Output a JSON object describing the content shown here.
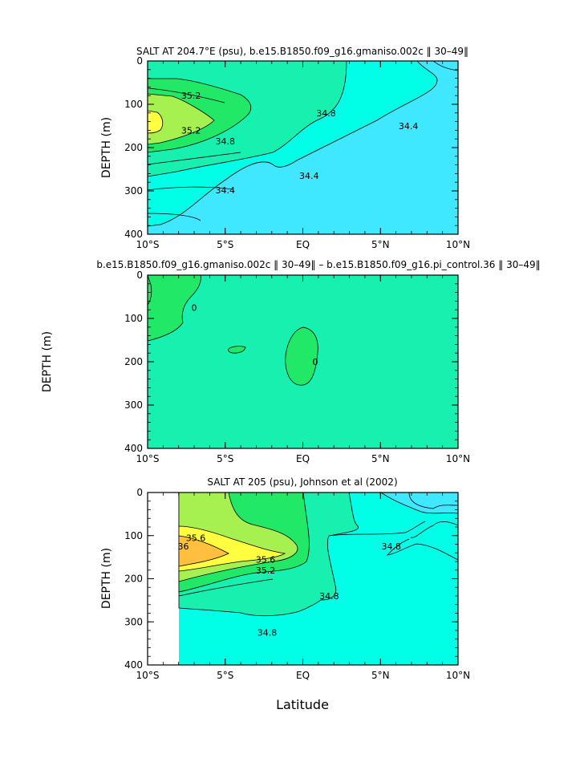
{
  "figure": {
    "xlabel": "Latitude",
    "colors": {
      "salt_lt_34_4": "#3fe8ff",
      "salt_34_4_34_8": "#00ffe6",
      "salt_34_8_35_2": "#18f0b0",
      "salt_35_2_35_6": "#22e868",
      "salt_35_6_36": "#a6f050",
      "salt_hi": "#ffff40",
      "salt_max": "#ffc040",
      "diff_zero": "#18f0b0",
      "diff_pos": "#22e868",
      "missing": "#ffffff"
    }
  },
  "chart_data": [
    {
      "type": "heatmap",
      "title": "SALT AT 204.7°E (psu), b.e15.B1850.f09_g16.gmaniso.002c ‖ 30–49‖",
      "xlabel": "",
      "ylabel": "DEPTH  (m)",
      "x_tick_labels": [
        "10°S",
        "5°S",
        "EQ",
        "5°N",
        "10°N"
      ],
      "x_tick_values": [
        -10,
        -5,
        0,
        5,
        10
      ],
      "y_tick_labels": [
        "0",
        "100",
        "200",
        "300",
        "400"
      ],
      "y_tick_values": [
        0,
        100,
        200,
        300,
        400
      ],
      "xlim": [
        -10,
        10
      ],
      "ylim": [
        400,
        0
      ],
      "contour_labels": [
        {
          "text": "35.2",
          "lat": -7.2,
          "depth": 80
        },
        {
          "text": "35.2",
          "lat": -7.2,
          "depth": 160
        },
        {
          "text": "34.8",
          "lat": -5.0,
          "depth": 185
        },
        {
          "text": "34.8",
          "lat": 1.5,
          "depth": 120
        },
        {
          "text": "34.4",
          "lat": -5.0,
          "depth": 298
        },
        {
          "text": "34.4",
          "lat": 0.4,
          "depth": 265
        },
        {
          "text": "34.4",
          "lat": 6.8,
          "depth": 150
        }
      ]
    },
    {
      "type": "heatmap",
      "title": "b.e15.B1850.f09_g16.gmaniso.002c ‖ 30–49‖ – b.e15.B1850.f09_g16.pi_control.36 ‖ 30–49‖",
      "xlabel": "",
      "ylabel": "DEPTH  (m)",
      "x_tick_labels": [
        "10°S",
        "5°S",
        "EQ",
        "5°N",
        "10°N"
      ],
      "x_tick_values": [
        -10,
        -5,
        0,
        5,
        10
      ],
      "y_tick_labels": [
        "0",
        "100",
        "200",
        "300",
        "400"
      ],
      "y_tick_values": [
        0,
        100,
        200,
        300,
        400
      ],
      "xlim": [
        -10,
        10
      ],
      "ylim": [
        400,
        0
      ],
      "contour_labels": [
        {
          "text": "0",
          "lat": -7.0,
          "depth": 75
        },
        {
          "text": "0",
          "lat": 0.8,
          "depth": 200
        }
      ]
    },
    {
      "type": "heatmap",
      "title": "SALT AT 205 (psu), Johnson et al (2002)",
      "xlabel": "Latitude",
      "ylabel": "DEPTH  (m)",
      "x_tick_labels": [
        "10°S",
        "5°S",
        "EQ",
        "5°N",
        "10°N"
      ],
      "x_tick_values": [
        -10,
        -5,
        0,
        5,
        10
      ],
      "y_tick_labels": [
        "0",
        "100",
        "200",
        "300",
        "400"
      ],
      "y_tick_values": [
        0,
        100,
        200,
        300,
        400
      ],
      "xlim": [
        -10,
        10
      ],
      "ylim": [
        400,
        0
      ],
      "contour_labels": [
        {
          "text": "35.6",
          "lat": -6.9,
          "depth": 105
        },
        {
          "text": "36",
          "lat": -7.7,
          "depth": 125
        },
        {
          "text": "35.6",
          "lat": -2.4,
          "depth": 155
        },
        {
          "text": "35.2",
          "lat": -2.4,
          "depth": 180
        },
        {
          "text": "34.8",
          "lat": 1.7,
          "depth": 240
        },
        {
          "text": "34.8",
          "lat": 5.7,
          "depth": 125
        },
        {
          "text": "34.8",
          "lat": -2.3,
          "depth": 325
        }
      ]
    }
  ]
}
